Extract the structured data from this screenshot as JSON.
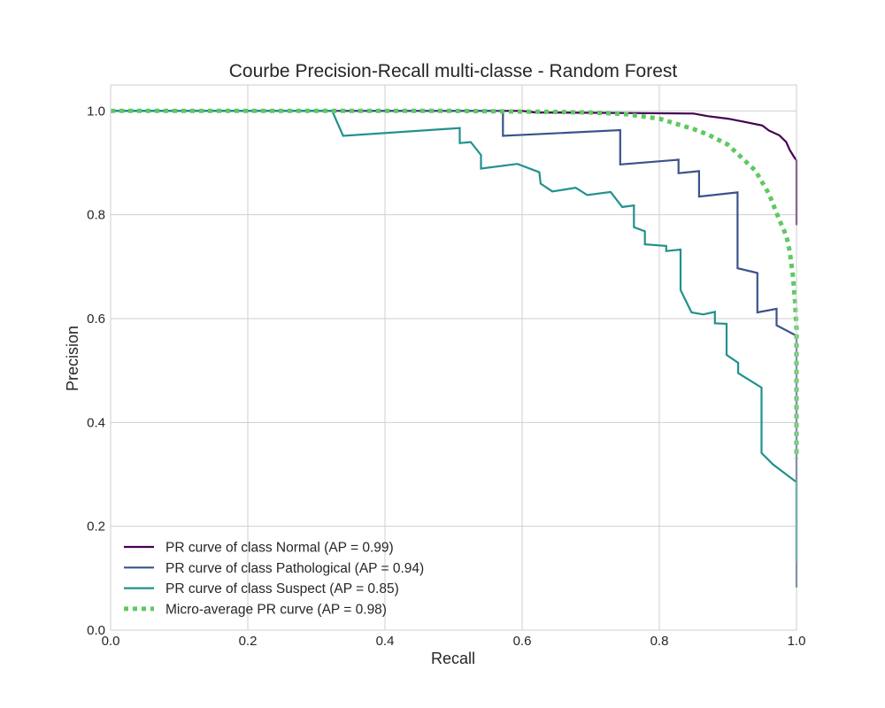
{
  "chart_data": {
    "type": "line",
    "title": "Courbe Precision-Recall multi-classe - Random Forest",
    "xlabel": "Recall",
    "ylabel": "Precision",
    "xlim": [
      0.0,
      1.0
    ],
    "ylim": [
      0.0,
      1.05
    ],
    "xticks": [
      "0.0",
      "0.2",
      "0.4",
      "0.6",
      "0.8",
      "1.0"
    ],
    "yticks": [
      "0.0",
      "0.2",
      "0.4",
      "0.6",
      "0.8",
      "1.0"
    ],
    "grid": true,
    "legend_position": "lower-left",
    "series": [
      {
        "name": "PR curve of class Normal (AP = 0.99)",
        "color": "#440154",
        "style": "solid",
        "points": [
          [
            0,
            1
          ],
          [
            0.6,
            1.0
          ],
          [
            0.62,
            0.997
          ],
          [
            0.75,
            0.996
          ],
          [
            0.85,
            0.995
          ],
          [
            0.87,
            0.99
          ],
          [
            0.9,
            0.985
          ],
          [
            0.92,
            0.98
          ],
          [
            0.95,
            0.972
          ],
          [
            0.96,
            0.962
          ],
          [
            0.975,
            0.953
          ],
          [
            0.985,
            0.94
          ],
          [
            0.99,
            0.925
          ],
          [
            0.997,
            0.91
          ],
          [
            1.0,
            0.905
          ],
          [
            1.0,
            0.78
          ]
        ]
      },
      {
        "name": "PR curve of class Pathological (AP = 0.94)",
        "color": "#3b528b",
        "style": "solid",
        "points": [
          [
            0,
            1
          ],
          [
            0.572,
            1.0
          ],
          [
            0.572,
            0.952
          ],
          [
            0.743,
            0.963
          ],
          [
            0.743,
            0.897
          ],
          [
            0.828,
            0.906
          ],
          [
            0.828,
            0.88
          ],
          [
            0.858,
            0.884
          ],
          [
            0.858,
            0.835
          ],
          [
            0.914,
            0.843
          ],
          [
            0.914,
            0.697
          ],
          [
            0.943,
            0.688
          ],
          [
            0.943,
            0.612
          ],
          [
            0.971,
            0.619
          ],
          [
            0.971,
            0.587
          ],
          [
            1.0,
            0.567
          ],
          [
            1.0,
            0.082
          ]
        ]
      },
      {
        "name": "PR curve of class Suspect (AP = 0.85)",
        "color": "#21918c",
        "style": "solid",
        "points": [
          [
            0,
            1
          ],
          [
            0.323,
            1.0
          ],
          [
            0.339,
            0.952
          ],
          [
            0.509,
            0.967
          ],
          [
            0.509,
            0.938
          ],
          [
            0.525,
            0.94
          ],
          [
            0.54,
            0.915
          ],
          [
            0.54,
            0.889
          ],
          [
            0.593,
            0.898
          ],
          [
            0.625,
            0.882
          ],
          [
            0.627,
            0.86
          ],
          [
            0.644,
            0.845
          ],
          [
            0.678,
            0.852
          ],
          [
            0.695,
            0.838
          ],
          [
            0.729,
            0.844
          ],
          [
            0.746,
            0.815
          ],
          [
            0.763,
            0.818
          ],
          [
            0.763,
            0.776
          ],
          [
            0.779,
            0.768
          ],
          [
            0.779,
            0.743
          ],
          [
            0.81,
            0.74
          ],
          [
            0.81,
            0.73
          ],
          [
            0.831,
            0.733
          ],
          [
            0.831,
            0.655
          ],
          [
            0.847,
            0.612
          ],
          [
            0.864,
            0.608
          ],
          [
            0.881,
            0.613
          ],
          [
            0.881,
            0.591
          ],
          [
            0.898,
            0.59
          ],
          [
            0.898,
            0.53
          ],
          [
            0.915,
            0.515
          ],
          [
            0.915,
            0.495
          ],
          [
            0.949,
            0.467
          ],
          [
            0.949,
            0.341
          ],
          [
            0.966,
            0.319
          ],
          [
            1.0,
            0.285
          ],
          [
            1.0,
            0.13
          ]
        ]
      },
      {
        "name": "Micro-average PR curve (AP = 0.98)",
        "color": "#5ec962",
        "style": "dotted",
        "points": [
          [
            0,
            1
          ],
          [
            0.5,
            1.0
          ],
          [
            0.65,
            0.998
          ],
          [
            0.7,
            0.997
          ],
          [
            0.75,
            0.994
          ],
          [
            0.8,
            0.985
          ],
          [
            0.85,
            0.965
          ],
          [
            0.87,
            0.955
          ],
          [
            0.9,
            0.935
          ],
          [
            0.92,
            0.91
          ],
          [
            0.94,
            0.885
          ],
          [
            0.96,
            0.84
          ],
          [
            0.975,
            0.79
          ],
          [
            0.985,
            0.76
          ],
          [
            0.99,
            0.73
          ],
          [
            0.995,
            0.68
          ],
          [
            0.998,
            0.63
          ],
          [
            1.0,
            0.58
          ],
          [
            1.0,
            0.33
          ]
        ]
      }
    ]
  }
}
